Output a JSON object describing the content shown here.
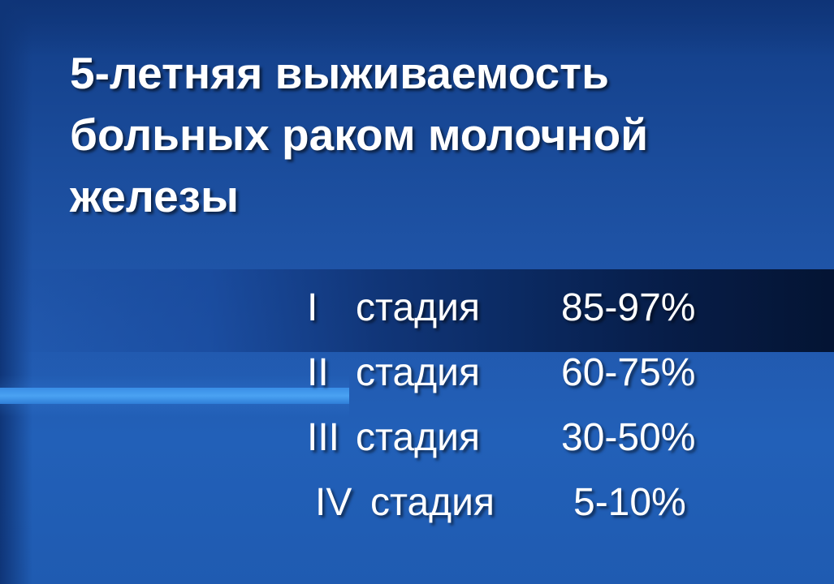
{
  "slide": {
    "title_lines": [
      "5-летняя выживаемость",
      "больных раком молочной",
      "железы"
    ],
    "stages": [
      {
        "roman": "I",
        "label": "стадия",
        "value": "85-97%"
      },
      {
        "roman": "II",
        "label": "стадия",
        "value": "60-75%"
      },
      {
        "roman": "III",
        "label": "стадия",
        "value": "30-50%"
      },
      {
        "roman": "IV",
        "label": "стадия",
        "value": "5-10%"
      }
    ],
    "colors": {
      "background": "#2158ad",
      "text": "#ffffff",
      "dark_band": "#071d48",
      "accent_stripe": "#4aa2f2"
    }
  }
}
